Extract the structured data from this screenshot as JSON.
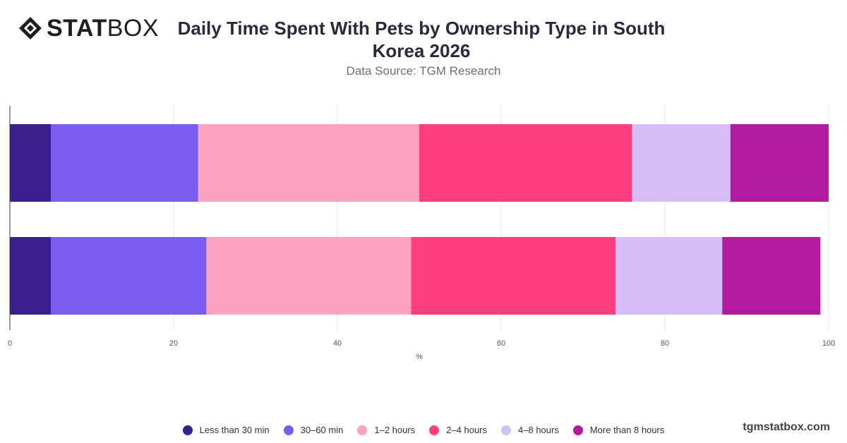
{
  "header": {
    "logo_bold": "STAT",
    "logo_light": "BOX",
    "title": "Daily Time Spent With Pets by Ownership Type in South Korea 2026",
    "subtitle": "Data Source: TGM Research"
  },
  "footer": {
    "brand": "tgmstatbox.com"
  },
  "chart_data": {
    "type": "bar",
    "orientation": "horizontal",
    "stacked": true,
    "title": "Daily Time Spent With Pets by Ownership Type in South Korea 2026",
    "subtitle": "Data Source: TGM Research",
    "xlabel": "%",
    "ylabel": "",
    "xlim": [
      0,
      100
    ],
    "x_ticks": [
      0,
      20,
      40,
      60,
      80,
      100
    ],
    "grid": true,
    "legend_position": "bottom",
    "categories": [
      "",
      ""
    ],
    "series": [
      {
        "name": "Less than 30 min",
        "color": "#3b1f8c",
        "values": [
          5,
          5
        ]
      },
      {
        "name": "30–60 min",
        "color": "#7b5cf0",
        "values": [
          18,
          19
        ]
      },
      {
        "name": "1–2 hours",
        "color": "#fba2c0",
        "values": [
          27,
          25
        ]
      },
      {
        "name": "2–4 hours",
        "color": "#ff3d80",
        "values": [
          26,
          25
        ]
      },
      {
        "name": "4–8 hours",
        "color": "#d6bdf8",
        "values": [
          12,
          13
        ]
      },
      {
        "name": "More than 8 hours",
        "color": "#b31a9e",
        "values": [
          12,
          12
        ]
      }
    ]
  }
}
